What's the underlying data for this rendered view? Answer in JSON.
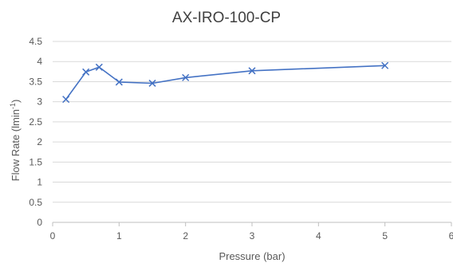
{
  "chart_data": {
    "type": "scatter",
    "title": "AX-IRO-100-CP",
    "xlabel": "Pressure (bar)",
    "ylabel_main": "Flow Rate (lmin",
    "ylabel_sup": "-1",
    "ylabel_end": ")",
    "xlim": [
      0,
      6
    ],
    "ylim": [
      0,
      4.5
    ],
    "x_ticks": [
      0,
      1,
      2,
      3,
      4,
      5,
      6
    ],
    "y_ticks": [
      0,
      0.5,
      1,
      1.5,
      2,
      2.5,
      3,
      3.5,
      4,
      4.5
    ],
    "x_tick_labels": [
      "0",
      "1",
      "2",
      "3",
      "4",
      "5",
      "6"
    ],
    "y_tick_labels": [
      "0",
      "0.5",
      "1",
      "1.5",
      "2",
      "2.5",
      "3",
      "3.5",
      "4",
      "4.5"
    ],
    "grid": "horizontal",
    "legend": "none",
    "series": [
      {
        "marker": "x",
        "line": "straight",
        "color": "#4472C4",
        "points": [
          {
            "x": 0.2,
            "y": 3.06
          },
          {
            "x": 0.5,
            "y": 3.74
          },
          {
            "x": 0.7,
            "y": 3.86
          },
          {
            "x": 1.0,
            "y": 3.49
          },
          {
            "x": 1.5,
            "y": 3.46
          },
          {
            "x": 2.0,
            "y": 3.6
          },
          {
            "x": 3.0,
            "y": 3.77
          },
          {
            "x": 5.0,
            "y": 3.9
          }
        ]
      }
    ],
    "colors": {
      "series": "#4472C4",
      "grid": "#d9d9d9",
      "axis": "#bfbfbf",
      "tick_text": "#595959",
      "title_text": "#404040"
    }
  }
}
